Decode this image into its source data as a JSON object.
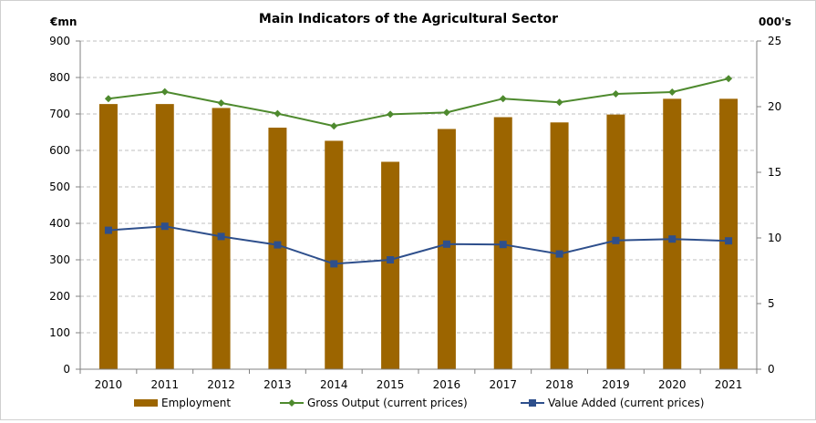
{
  "chart_data": {
    "type": "bar",
    "title": "Main Indicators of the Agricultural  Sector",
    "y_left_label": "€mn",
    "y_right_label": "000's",
    "y_left_lim": [
      0,
      900
    ],
    "y_left_ticks": [
      0,
      100,
      200,
      300,
      400,
      500,
      600,
      700,
      800,
      900
    ],
    "y_right_lim": [
      0,
      25
    ],
    "y_right_ticks": [
      0,
      5,
      10,
      15,
      20,
      25
    ],
    "grid": true,
    "legend_position": "bottom",
    "categories": [
      "2010",
      "2011",
      "2012",
      "2013",
      "2014",
      "2015",
      "2016",
      "2017",
      "2018",
      "2019",
      "2020",
      "2021"
    ],
    "series": [
      {
        "name": "Employment",
        "type": "bar",
        "axis": "right",
        "color": "#9c6500",
        "values": [
          20.2,
          20.2,
          19.9,
          18.4,
          17.4,
          15.8,
          18.3,
          19.2,
          18.8,
          19.4,
          20.6,
          20.6
        ]
      },
      {
        "name": "Gross Output (current prices)",
        "type": "line",
        "axis": "left",
        "color": "#4e8a2e",
        "marker": "diamond",
        "values": [
          742,
          761,
          730,
          701,
          667,
          699,
          704,
          742,
          732,
          755,
          760,
          797
        ]
      },
      {
        "name": "Value Added (current prices)",
        "type": "line",
        "axis": "left",
        "color": "#2e4f8c",
        "marker": "square",
        "values": [
          381,
          392,
          364,
          341,
          289,
          300,
          343,
          342,
          316,
          353,
          357,
          352
        ]
      }
    ]
  }
}
